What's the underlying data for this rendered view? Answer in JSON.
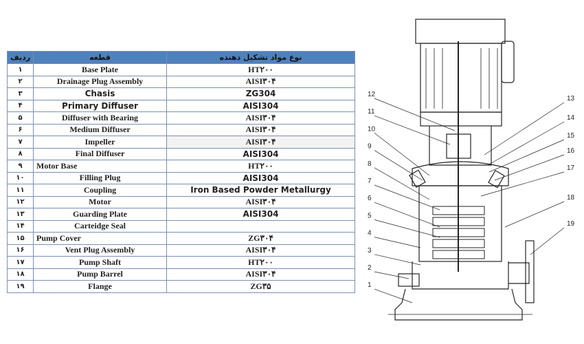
{
  "table": {
    "headers": {
      "index": "ردیف",
      "part": "قطعه",
      "material": "نوع مواد تشکیل دهنده"
    },
    "rows": [
      {
        "index": "۱",
        "part": "Base Plate",
        "material": "HT۲۰۰"
      },
      {
        "index": "۲",
        "part": "Drainage Plug Assembly",
        "material": "AISI۳۰۴"
      },
      {
        "index": "۳",
        "part": "Chasis",
        "material": "ZG304"
      },
      {
        "index": "۴",
        "part": "Primary Diffuser",
        "material": "AISI304"
      },
      {
        "index": "۵",
        "part": "Diffuser with Bearing",
        "material": "AISI۳۰۴"
      },
      {
        "index": "۶",
        "part": "Medium Diffuser",
        "material": "AISI۳۰۴"
      },
      {
        "index": "۷",
        "part": "Impeller",
        "material": "AISI۳۰۴"
      },
      {
        "index": "۸",
        "part": "Final Diffuser",
        "material": "AISI304"
      },
      {
        "index": "۹",
        "part": "Motor Base",
        "material": "HT۲۰۰"
      },
      {
        "index": "۱۰",
        "part": "Filling Plug",
        "material": "AISI304"
      },
      {
        "index": "۱۱",
        "part": "Coupling",
        "material": "Iron Based Powder Metallurgy"
      },
      {
        "index": "۱۲",
        "part": "Motor",
        "material": "AISI۳۰۴"
      },
      {
        "index": "۱۳",
        "part": "Guarding Plate",
        "material": "AISI304"
      },
      {
        "index": "۱۴",
        "part": "Carteidge Seal",
        "material": ""
      },
      {
        "index": "۱۵",
        "part": "Pump Cover",
        "material": "ZG۳۰۴"
      },
      {
        "index": "۱۶",
        "part": "Vent Plug Assembly",
        "material": "AISI۳۰۴"
      },
      {
        "index": "۱۷",
        "part": "Pump Shaft",
        "material": "HT۲۰۰"
      },
      {
        "index": "۱۸",
        "part": "Pump Barrel",
        "material": "AISI۳۰۴"
      },
      {
        "index": "۱۹",
        "part": "Flange",
        "material": "ZG۳۵"
      }
    ]
  },
  "diagram": {
    "callouts_left": [
      "12",
      "11",
      "10",
      "9",
      "8",
      "7",
      "6",
      "5",
      "4",
      "3",
      "2",
      "1"
    ],
    "callouts_right": [
      "13",
      "14",
      "15",
      "16",
      "17",
      "18",
      "19"
    ]
  },
  "colors": {
    "header_bg": "#4f81bd",
    "border": "#7d8fb0"
  }
}
